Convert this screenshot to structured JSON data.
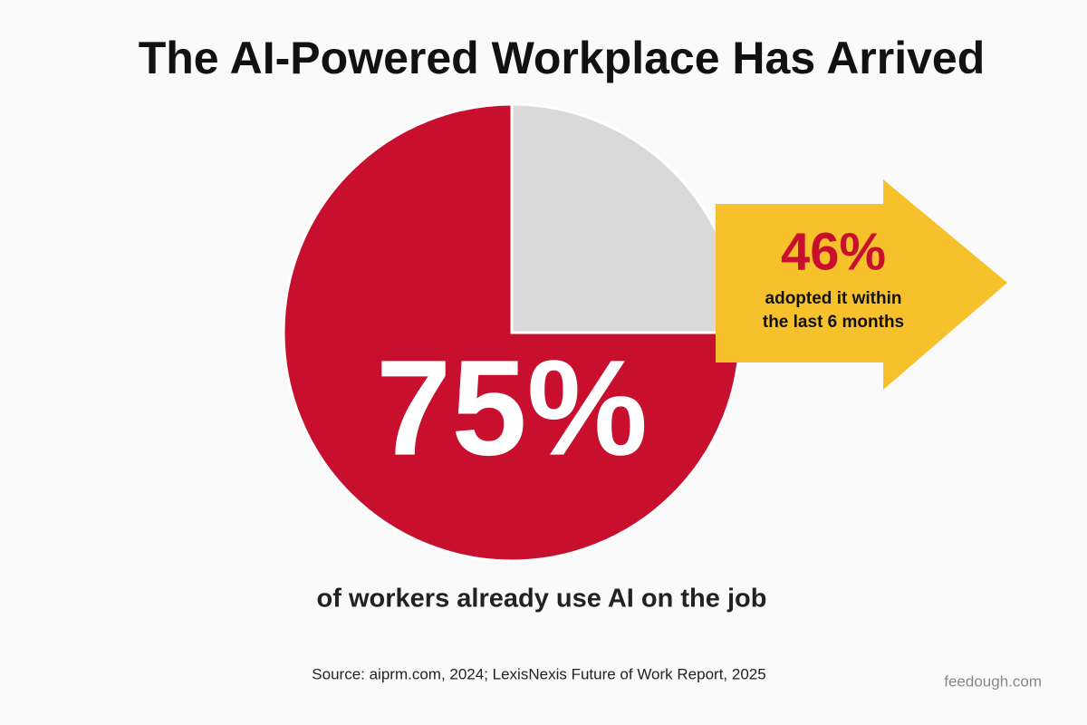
{
  "chart_data": {
    "type": "pie",
    "title": "The AI-Powered Workplace Has Arrived",
    "values": [
      75,
      25
    ],
    "value_labels": [
      "75%",
      null
    ],
    "colors": [
      "#c8102e",
      "#d9d9d9"
    ],
    "callout": {
      "value_text": "46%",
      "lines": [
        "adopted it within",
        "the last 6 months"
      ]
    },
    "caption": "of workers already use AI on the job",
    "source": "Source: aiprm.com, 2024; LexisNexis Future of Work Report, 2025",
    "watermark": "feedough.com"
  }
}
